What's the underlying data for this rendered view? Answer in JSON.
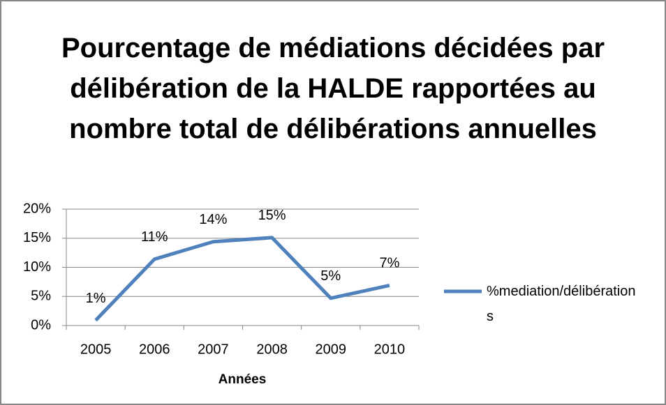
{
  "chart_data": {
    "type": "line",
    "title": "Pourcentage de médiations décidées par délibération de la HALDE rapportées au nombre total de délibérations annuelles",
    "x_label": "Années",
    "categories": [
      "2005",
      "2006",
      "2007",
      "2008",
      "2009",
      "2010"
    ],
    "series": [
      {
        "name": "%mediation/délibérations",
        "color": "#4f81bd",
        "values": [
          0.9,
          11.4,
          14.4,
          15.1,
          4.7,
          6.9
        ],
        "value_labels": [
          "1%",
          "11%",
          "14%",
          "15%",
          "5%",
          "7%"
        ]
      }
    ],
    "ylim": [
      0,
      20
    ],
    "yticks": [
      {
        "value": 0,
        "label": "0%"
      },
      {
        "value": 5,
        "label": "5%"
      },
      {
        "value": 10,
        "label": "10%"
      },
      {
        "value": 15,
        "label": "15%"
      },
      {
        "value": 20,
        "label": "20%"
      }
    ],
    "grid": true,
    "legend": "right"
  }
}
